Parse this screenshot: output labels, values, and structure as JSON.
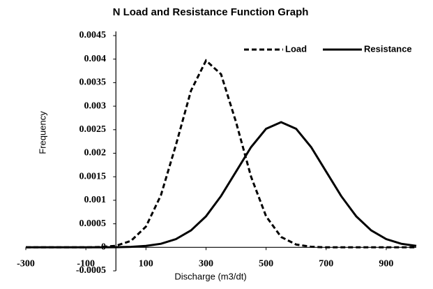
{
  "chart_data": {
    "type": "line",
    "title": "N Load and Resistance Function Graph",
    "x_label": "Discharge (m3/dt)",
    "y_label": "Frequency",
    "x": [
      -300,
      -250,
      -200,
      -150,
      -100,
      -50,
      0,
      50,
      100,
      150,
      200,
      250,
      300,
      350,
      400,
      450,
      500,
      550,
      600,
      650,
      700,
      750,
      800,
      850,
      900,
      950,
      1000
    ],
    "series": [
      {
        "name": "Load",
        "color": "#000000",
        "line_style": "dashed",
        "values": [
          0,
          0,
          0,
          0,
          0,
          6e-06,
          3.3e-05,
          0.000136,
          0.00044,
          0.00111,
          0.00218,
          0.00333,
          0.00397,
          0.00368,
          0.00266,
          0.0015,
          0.00066,
          0.00022,
          6e-05,
          1.2e-05,
          0,
          0,
          0,
          0,
          0,
          0,
          0
        ]
      },
      {
        "name": "Resistance",
        "color": "#000000",
        "line_style": "solid",
        "values": [
          0,
          0,
          0,
          0,
          0,
          0,
          3e-06,
          1e-05,
          3e-05,
          7.6e-05,
          0.000175,
          0.00036,
          0.00066,
          0.00109,
          0.00161,
          0.00213,
          0.00252,
          0.00266,
          0.00252,
          0.00213,
          0.00161,
          0.00109,
          0.00066,
          0.00036,
          0.000175,
          7.6e-05,
          3e-05
        ]
      }
    ],
    "xlim": [
      -300,
      1000
    ],
    "xticks": [
      -300,
      -100,
      100,
      300,
      500,
      700,
      900
    ],
    "ylim": [
      -0.0005,
      0.0045
    ],
    "yticks": [
      -0.0005,
      0,
      0.0005,
      0.001,
      0.0015,
      0.002,
      0.0025,
      0.003,
      0.0035,
      0.004,
      0.0045
    ],
    "grid": false,
    "legend": "top-right"
  }
}
